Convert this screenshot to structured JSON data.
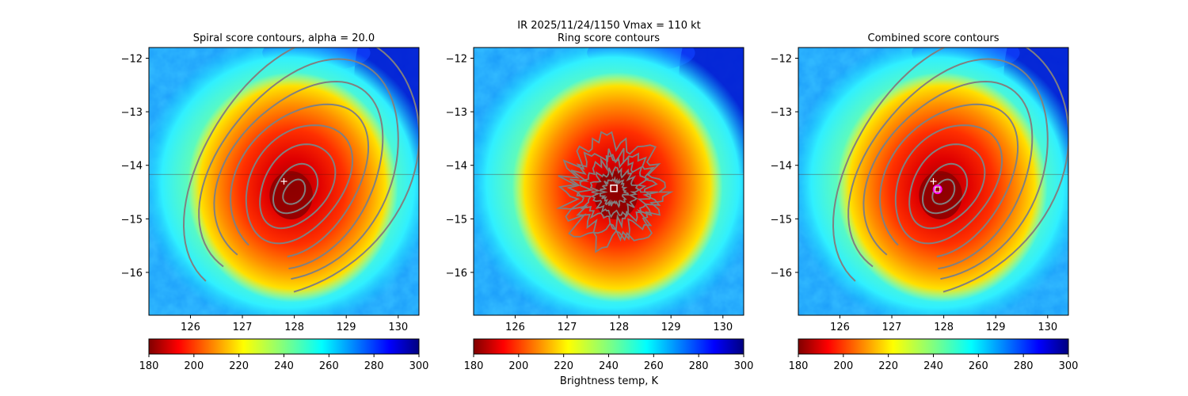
{
  "figure": {
    "suptitle_line1": "IR  2025/11/24/1150    Vmax = 110 kt",
    "colorbar_label": "Brightness temp, K"
  },
  "chart_data": [
    {
      "type": "heatmap",
      "title": "Spiral score contours, alpha = 20.0",
      "xlim": [
        125.2,
        130.4
      ],
      "ylim": [
        -16.8,
        -11.8
      ],
      "xticks": [
        126,
        127,
        128,
        129,
        130
      ],
      "yticks": [
        -12,
        -13,
        -14,
        -15,
        -16
      ],
      "xticklabels": [
        "126",
        "127",
        "128",
        "129",
        "130"
      ],
      "yticklabels": [
        "−12",
        "−13",
        "−14",
        "−15",
        "−16"
      ],
      "storm_center": [
        128.0,
        -14.5
      ],
      "marker_plus": [
        127.8,
        -14.3
      ],
      "overlay": "spiral",
      "colorbar": {
        "range": [
          180,
          300
        ],
        "ticks": [
          180,
          200,
          220,
          240,
          260,
          280,
          300
        ],
        "ticklabels": [
          "180",
          "200",
          "220",
          "240",
          "260",
          "280",
          "300"
        ]
      }
    },
    {
      "type": "heatmap",
      "title": "Ring score contours",
      "xlim": [
        125.2,
        130.4
      ],
      "ylim": [
        -16.8,
        -11.8
      ],
      "xticks": [
        126,
        127,
        128,
        129,
        130
      ],
      "yticks": [
        -12,
        -13,
        -14,
        -15,
        -16
      ],
      "xticklabels": [
        "126",
        "127",
        "128",
        "129",
        "130"
      ],
      "yticklabels": [
        "−12",
        "−13",
        "−14",
        "−15",
        "−16"
      ],
      "storm_center": [
        128.0,
        -14.5
      ],
      "marker_square": [
        127.9,
        -14.43
      ],
      "overlay": "ring",
      "colorbar": {
        "range": [
          180,
          300
        ],
        "ticks": [
          180,
          200,
          220,
          240,
          260,
          280,
          300
        ],
        "ticklabels": [
          "180",
          "200",
          "220",
          "240",
          "260",
          "280",
          "300"
        ]
      }
    },
    {
      "type": "heatmap",
      "title": "Combined score contours",
      "xlim": [
        125.2,
        130.4
      ],
      "ylim": [
        -16.8,
        -11.8
      ],
      "xticks": [
        126,
        127,
        128,
        129,
        130
      ],
      "yticks": [
        -12,
        -13,
        -14,
        -15,
        -16
      ],
      "xticklabels": [
        "126",
        "127",
        "128",
        "129",
        "130"
      ],
      "yticklabels": [
        "−12",
        "−13",
        "−14",
        "−15",
        "−16"
      ],
      "storm_center": [
        128.0,
        -14.5
      ],
      "marker_plus": [
        127.8,
        -14.3
      ],
      "marker_circle": [
        127.88,
        -14.45
      ],
      "overlay": "spiral",
      "colorbar": {
        "range": [
          180,
          300
        ],
        "ticks": [
          180,
          200,
          220,
          240,
          260,
          280,
          300
        ],
        "ticklabels": [
          "180",
          "200",
          "220",
          "240",
          "260",
          "280",
          "300"
        ]
      }
    }
  ],
  "colors": {
    "contour": "#808080",
    "marker": "#ffffff",
    "circle": "#ff00ff",
    "jet_reversed": [
      "#800000",
      "#ff0000",
      "#ff8000",
      "#ffff00",
      "#80ff80",
      "#00ffff",
      "#0080ff",
      "#0000ff",
      "#000080"
    ]
  }
}
